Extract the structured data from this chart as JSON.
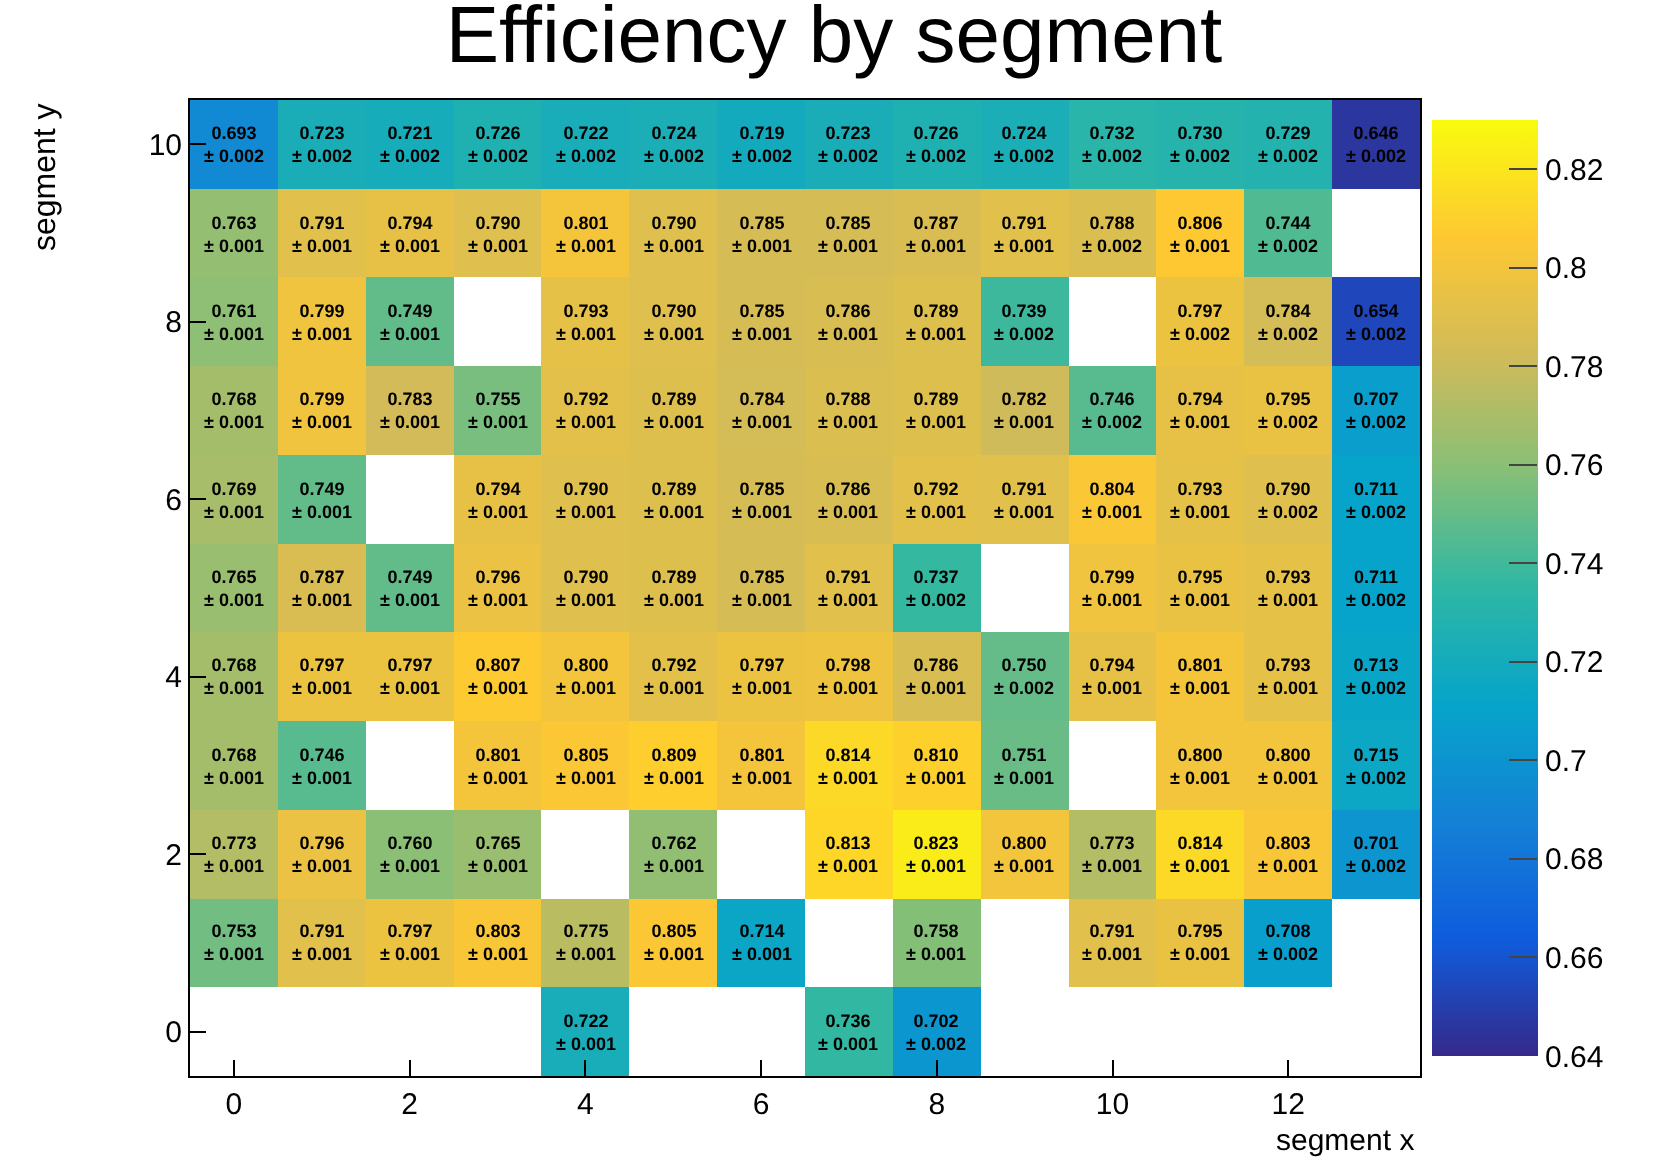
{
  "chart_data": {
    "type": "heatmap",
    "title": "Efficiency by segment",
    "xlabel": "segment x",
    "ylabel": "segment y",
    "categories": [
      "0",
      null,
      "2",
      null,
      "4",
      null,
      "6",
      null,
      "8",
      null,
      "10",
      null,
      "12",
      null
    ],
    "y_categories": [
      "10",
      null,
      "8",
      null,
      "6",
      null,
      "4",
      null,
      "2",
      null,
      "0"
    ],
    "cells": [
      [
        0.693,
        0.723,
        0.721,
        0.726,
        0.722,
        0.724,
        0.719,
        0.723,
        0.726,
        0.724,
        0.732,
        0.73,
        0.729,
        0.646
      ],
      [
        0.763,
        0.791,
        0.794,
        0.79,
        0.801,
        0.79,
        0.785,
        0.785,
        0.787,
        0.791,
        0.788,
        0.806,
        0.744,
        null
      ],
      [
        0.761,
        0.799,
        0.749,
        null,
        0.793,
        0.79,
        0.785,
        0.786,
        0.789,
        0.739,
        null,
        0.797,
        0.784,
        0.654
      ],
      [
        0.768,
        0.799,
        0.783,
        0.755,
        0.792,
        0.789,
        0.784,
        0.788,
        0.789,
        0.782,
        0.746,
        0.794,
        0.795,
        0.707
      ],
      [
        0.769,
        0.749,
        null,
        0.794,
        0.79,
        0.789,
        0.785,
        0.786,
        0.792,
        0.791,
        0.804,
        0.793,
        0.79,
        0.711
      ],
      [
        0.765,
        0.787,
        0.749,
        0.796,
        0.79,
        0.789,
        0.785,
        0.791,
        0.737,
        null,
        0.799,
        0.795,
        0.793,
        0.711
      ],
      [
        0.768,
        0.797,
        0.797,
        0.807,
        0.8,
        0.792,
        0.797,
        0.798,
        0.786,
        0.75,
        0.794,
        0.801,
        0.793,
        0.713
      ],
      [
        0.768,
        0.746,
        null,
        0.801,
        0.805,
        0.809,
        0.801,
        0.814,
        0.81,
        0.751,
        null,
        0.8,
        0.8,
        0.715
      ],
      [
        0.773,
        0.796,
        0.76,
        0.765,
        null,
        0.762,
        null,
        0.813,
        0.823,
        0.8,
        0.773,
        0.814,
        0.803,
        0.701
      ],
      [
        0.753,
        0.791,
        0.797,
        0.803,
        0.775,
        0.805,
        0.714,
        null,
        0.758,
        null,
        0.791,
        0.795,
        0.708,
        null
      ],
      [
        null,
        null,
        null,
        null,
        0.722,
        null,
        null,
        0.736,
        0.702,
        null,
        null,
        null,
        null,
        null
      ]
    ],
    "cell_labels": [
      [
        "0.693\n± 0.002",
        "0.723\n± 0.002",
        "0.721\n± 0.002",
        "0.726\n± 0.002",
        "0.722\n± 0.002",
        "0.724\n± 0.002",
        "0.719\n± 0.002",
        "0.723\n± 0.002",
        "0.726\n± 0.002",
        "0.724\n± 0.002",
        "0.732\n± 0.002",
        "0.730\n± 0.002",
        "0.729\n± 0.002",
        "0.646\n± 0.002"
      ],
      [
        "0.763\n± 0.001",
        "0.791\n± 0.001",
        "0.794\n± 0.001",
        "0.790\n± 0.001",
        "0.801\n± 0.001",
        "0.790\n± 0.001",
        "0.785\n± 0.001",
        "0.785\n± 0.001",
        "0.787\n± 0.001",
        "0.791\n± 0.001",
        "0.788\n± 0.002",
        "0.806\n± 0.001",
        "0.744\n± 0.002",
        null
      ],
      [
        "0.761\n± 0.001",
        "0.799\n± 0.001",
        "0.749\n± 0.001",
        null,
        "0.793\n± 0.001",
        "0.790\n± 0.001",
        "0.785\n± 0.001",
        "0.786\n± 0.001",
        "0.789\n± 0.001",
        "0.739\n± 0.002",
        null,
        "0.797\n± 0.002",
        "0.784\n± 0.002",
        "0.654\n± 0.002"
      ],
      [
        "0.768\n± 0.001",
        "0.799\n± 0.001",
        "0.783\n± 0.001",
        "0.755\n± 0.001",
        "0.792\n± 0.001",
        "0.789\n± 0.001",
        "0.784\n± 0.001",
        "0.788\n± 0.001",
        "0.789\n± 0.001",
        "0.782\n± 0.001",
        "0.746\n± 0.002",
        "0.794\n± 0.001",
        "0.795\n± 0.002",
        "0.707\n± 0.002"
      ],
      [
        "0.769\n± 0.001",
        "0.749\n± 0.001",
        null,
        "0.794\n± 0.001",
        "0.790\n± 0.001",
        "0.789\n± 0.001",
        "0.785\n± 0.001",
        "0.786\n± 0.001",
        "0.792\n± 0.001",
        "0.791\n± 0.001",
        "0.804\n± 0.001",
        "0.793\n± 0.001",
        "0.790\n± 0.002",
        "0.711\n± 0.002"
      ],
      [
        "0.765\n± 0.001",
        "0.787\n± 0.001",
        "0.749\n± 0.001",
        "0.796\n± 0.001",
        "0.790\n± 0.001",
        "0.789\n± 0.001",
        "0.785\n± 0.001",
        "0.791\n± 0.001",
        "0.737\n± 0.002",
        null,
        "0.799\n± 0.001",
        "0.795\n± 0.001",
        "0.793\n± 0.001",
        "0.711\n± 0.002"
      ],
      [
        "0.768\n± 0.001",
        "0.797\n± 0.001",
        "0.797\n± 0.001",
        "0.807\n± 0.001",
        "0.800\n± 0.001",
        "0.792\n± 0.001",
        "0.797\n± 0.001",
        "0.798\n± 0.001",
        "0.786\n± 0.001",
        "0.750\n± 0.002",
        "0.794\n± 0.001",
        "0.801\n± 0.001",
        "0.793\n± 0.001",
        "0.713\n± 0.002"
      ],
      [
        "0.768\n± 0.001",
        "0.746\n± 0.001",
        null,
        "0.801\n± 0.001",
        "0.805\n± 0.001",
        "0.809\n± 0.001",
        "0.801\n± 0.001",
        "0.814\n± 0.001",
        "0.810\n± 0.001",
        "0.751\n± 0.001",
        null,
        "0.800\n± 0.001",
        "0.800\n± 0.001",
        "0.715\n± 0.002"
      ],
      [
        "0.773\n± 0.001",
        "0.796\n± 0.001",
        "0.760\n± 0.001",
        "0.765\n± 0.001",
        null,
        "0.762\n± 0.001",
        null,
        "0.813\n± 0.001",
        "0.823\n± 0.001",
        "0.800\n± 0.001",
        "0.773\n± 0.001",
        "0.814\n± 0.001",
        "0.803\n± 0.001",
        "0.701\n± 0.002"
      ],
      [
        "0.753\n± 0.001",
        "0.791\n± 0.001",
        "0.797\n± 0.001",
        "0.803\n± 0.001",
        "0.775\n± 0.001",
        "0.805\n± 0.001",
        "0.714\n± 0.001",
        null,
        "0.758\n± 0.001",
        null,
        "0.791\n± 0.001",
        "0.795\n± 0.001",
        "0.708\n± 0.002",
        null
      ],
      [
        null,
        null,
        null,
        null,
        "0.722\n± 0.001",
        null,
        null,
        "0.736\n± 0.001",
        "0.702\n± 0.002",
        null,
        null,
        null,
        null,
        null
      ]
    ],
    "clim": [
      0.64,
      0.83
    ],
    "cticks": [
      0.64,
      0.66,
      0.68,
      0.7,
      0.72,
      0.74,
      0.76,
      0.78,
      0.8,
      0.82
    ],
    "grid": false
  }
}
